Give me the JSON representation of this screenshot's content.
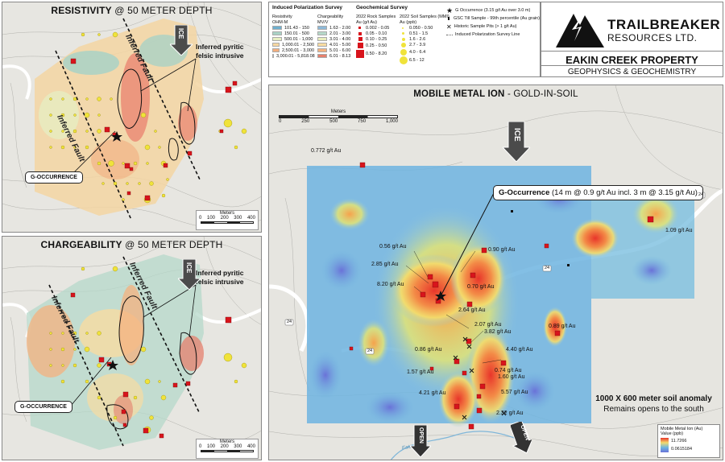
{
  "resistivity": {
    "title_bold": "RESISTIVITY",
    "title_rest": "@ 50 METER DEPTH",
    "ice": "ICE",
    "fault_label_1": "Inferred Fault",
    "fault_label_2": "Inferred Fault",
    "intrusive": "Inferred pyritic felsic intrusive",
    "callout": "G-OCCURRENCE",
    "scale_title": "Meters",
    "scale_ticks": [
      "0",
      "100",
      "200",
      "300",
      "400"
    ]
  },
  "chargeability": {
    "title_bold": "CHARGEABILITY",
    "title_rest": "@ 50 METER DEPTH",
    "ice": "ICE",
    "fault_label_1": "Inferred Fault",
    "fault_label_2": "Inferred Fault",
    "intrusive": "Inferred pyritic felsic intrusive",
    "callout": "G-OCCURRENCE",
    "scale_title": "Meters",
    "scale_ticks": [
      "0",
      "100",
      "200",
      "300",
      "400"
    ]
  },
  "legend": {
    "ip_title": "Induced Polarization Survey",
    "resistivity_head": "Resistivity",
    "resistivity_unit": "OHM-M",
    "resistivity_classes": [
      "101.43 - 150",
      "150.01 - 500",
      "500.01 - 1,000",
      "1,000.01 - 2,500",
      "2,500.01 - 3,000",
      "3,000.01 - 5,818.08"
    ],
    "resistivity_colors": [
      "#6fb0cf",
      "#a9d2c6",
      "#e6eec2",
      "#f6d7a1",
      "#f2ae7e",
      "#e9826f"
    ],
    "chargeability_head": "Chargeability",
    "chargeability_unit": "MV/V",
    "chargeability_classes": [
      "1.63 - 2.00",
      "2.01 - 3.00",
      "3.01 - 4.00",
      "4.01 - 5.00",
      "5.01 - 6.00",
      "6.01 - 8.13"
    ],
    "chargeability_colors": [
      "#8db9d8",
      "#b6d8c9",
      "#e8edbd",
      "#f8dca1",
      "#f4b27f",
      "#e5806d"
    ],
    "geo_title": "Geochemical Survey",
    "rock_head": "2022 Rock Samples",
    "rock_unit": "Au (g/t Au)",
    "rock_classes": [
      "0.002 - 0.05",
      "0.05 - 0.10",
      "0.10 - 0.25",
      "0.25 - 0.50",
      "0.50 - 8.20"
    ],
    "soil_head": "2022 Soil Samples (MMI)",
    "soil_unit": "Au (ppb)",
    "soil_classes": [
      "0.050 - 0.50",
      "0.51 - 1.5",
      "1.6 - 2.6",
      "2.7 - 3.9",
      "4.0 - 6.4",
      "6.5 - 12"
    ],
    "symbols": [
      "G Occurrence (3.15 g/t Au over 3.0 m)",
      "GSC Till Sample - 99th percentile (Au grain)",
      "Historic Sample Pits (> 1 g/t Au)",
      "Induced Polarization Survey Line"
    ]
  },
  "logo": {
    "name": "TRAILBREAKER",
    "sub": "RESOURCES LTD.",
    "property": "EAKIN CREEK PROPERTY",
    "subtitle": "GEOPHYSICS & GEOCHEMISTRY"
  },
  "mmi": {
    "title_bold": "MOBILE METAL ION",
    "title_rest": "- GOLD-IN-SOIL",
    "scale_title": "Meters",
    "scale_ticks": [
      "0",
      "250",
      "500",
      "750",
      "1,000"
    ],
    "ice": "ICE",
    "g_occurrence_bold": "G-Occurrence",
    "g_occurrence_rest": "(14 m @ 0.9 g/t Au incl. 3 m @ 3.15 g/t Au)",
    "road_labels": [
      "24",
      "24",
      "24",
      "24"
    ],
    "creek_label": "Eakin Creek",
    "au_labels": [
      "0.772 g/t Au",
      "1.09 g/t Au",
      "0.56 g/t Au",
      "0.90 g/t Au",
      "2.85 g/t Au",
      "8.20 g/t Au",
      "0.70 g/t Au",
      "2.64 g/t Au",
      "2.07 g/t Au",
      "3.82 g/t Au",
      "0.89 g/t Au",
      "0.86 g/t Au",
      "4.40 g/t Au",
      "1.57 g/t Au",
      "0.74 g/t Au",
      "1.60 g/t Au",
      "4.21 g/t Au",
      "5.57 g/t Au",
      "2.32 g/t Au"
    ],
    "anomaly_line1": "1000 X 600 meter soil anomaly",
    "anomaly_line2": "Remains opens to the south",
    "open_1": "OPEN",
    "open_2": "OPEN",
    "legend_title": "Mobile Metal Ion (Au)",
    "legend_value": "Value (ppb)",
    "legend_high": "11.7266",
    "legend_low": "0.0615184"
  }
}
